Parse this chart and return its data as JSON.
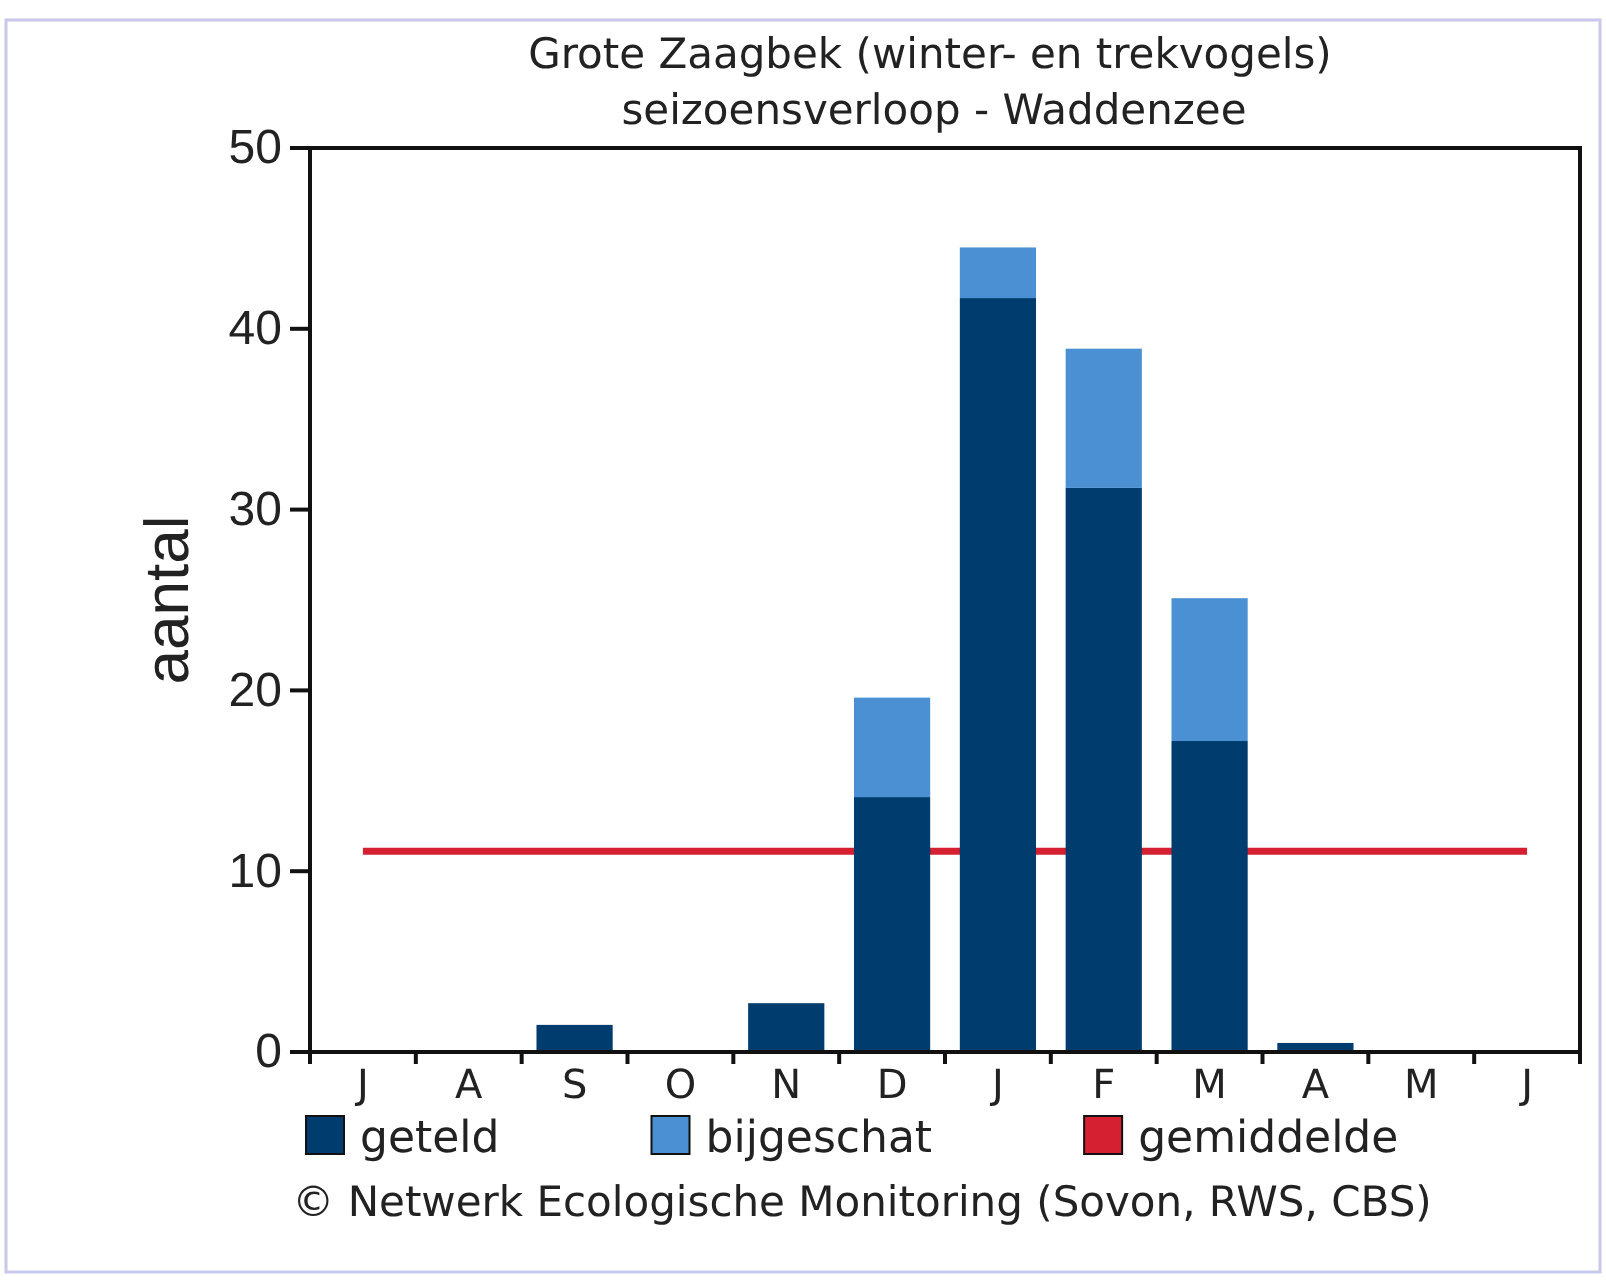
{
  "chart_data": {
    "type": "bar",
    "title": "Grote Zaagbek (winter- en trekvogels)",
    "subtitle": "seizoensverloop - Waddenzee",
    "ylabel": "aantal",
    "categories": [
      "J",
      "A",
      "S",
      "O",
      "N",
      "D",
      "J",
      "F",
      "M",
      "A",
      "M",
      "J"
    ],
    "series": [
      {
        "name": "geteld",
        "color": "#003d6e",
        "values": [
          0,
          0,
          1.5,
          0,
          2.7,
          14.1,
          41.7,
          31.2,
          17.2,
          0.5,
          0,
          0
        ]
      },
      {
        "name": "bijgeschat",
        "color": "#4a90d2",
        "values": [
          0,
          0,
          0,
          0,
          0,
          5.5,
          2.8,
          7.7,
          7.9,
          0,
          0,
          0
        ]
      }
    ],
    "stacked": true,
    "ref_lines": [
      {
        "axis": "y",
        "value": 11.1,
        "label": "gemiddelde",
        "color": "#d42030"
      }
    ],
    "ylim": [
      0,
      50
    ],
    "yticks": [
      0,
      10,
      20,
      30,
      40,
      50
    ],
    "legend": "bottom",
    "annotations": [
      "© Netwerk Ecologische Monitoring (Sovon, RWS, CBS)"
    ]
  }
}
